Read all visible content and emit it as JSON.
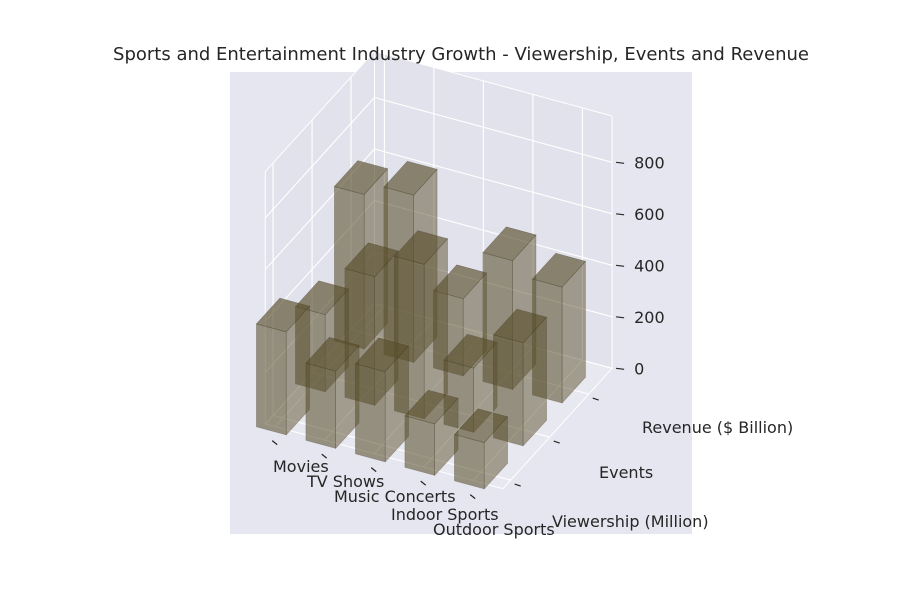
{
  "chart_data": {
    "type": "bar3d",
    "title": "Sports and Entertainment Industry Growth - Viewership, Events and Revenue",
    "categories": [
      "Movies",
      "TV Shows",
      "Music Concerts",
      "Indoor Sports",
      "Outdoor Sports"
    ],
    "series": [
      {
        "name": "Viewership (Million)",
        "values": [
          400,
          300,
          350,
          200,
          180
        ]
      },
      {
        "name": "Events",
        "values": [
          300,
          500,
          600,
          250,
          400
        ]
      },
      {
        "name": "Revenue ($ Billion)",
        "values": [
          600,
          650,
          300,
          500,
          450
        ]
      }
    ],
    "z_ticks": [
      "0",
      "200",
      "400",
      "600",
      "800"
    ],
    "zlim": [
      0,
      900
    ],
    "bar_color": "#5a4f2c",
    "pane_color": "#e6e6f0",
    "grid": true
  }
}
